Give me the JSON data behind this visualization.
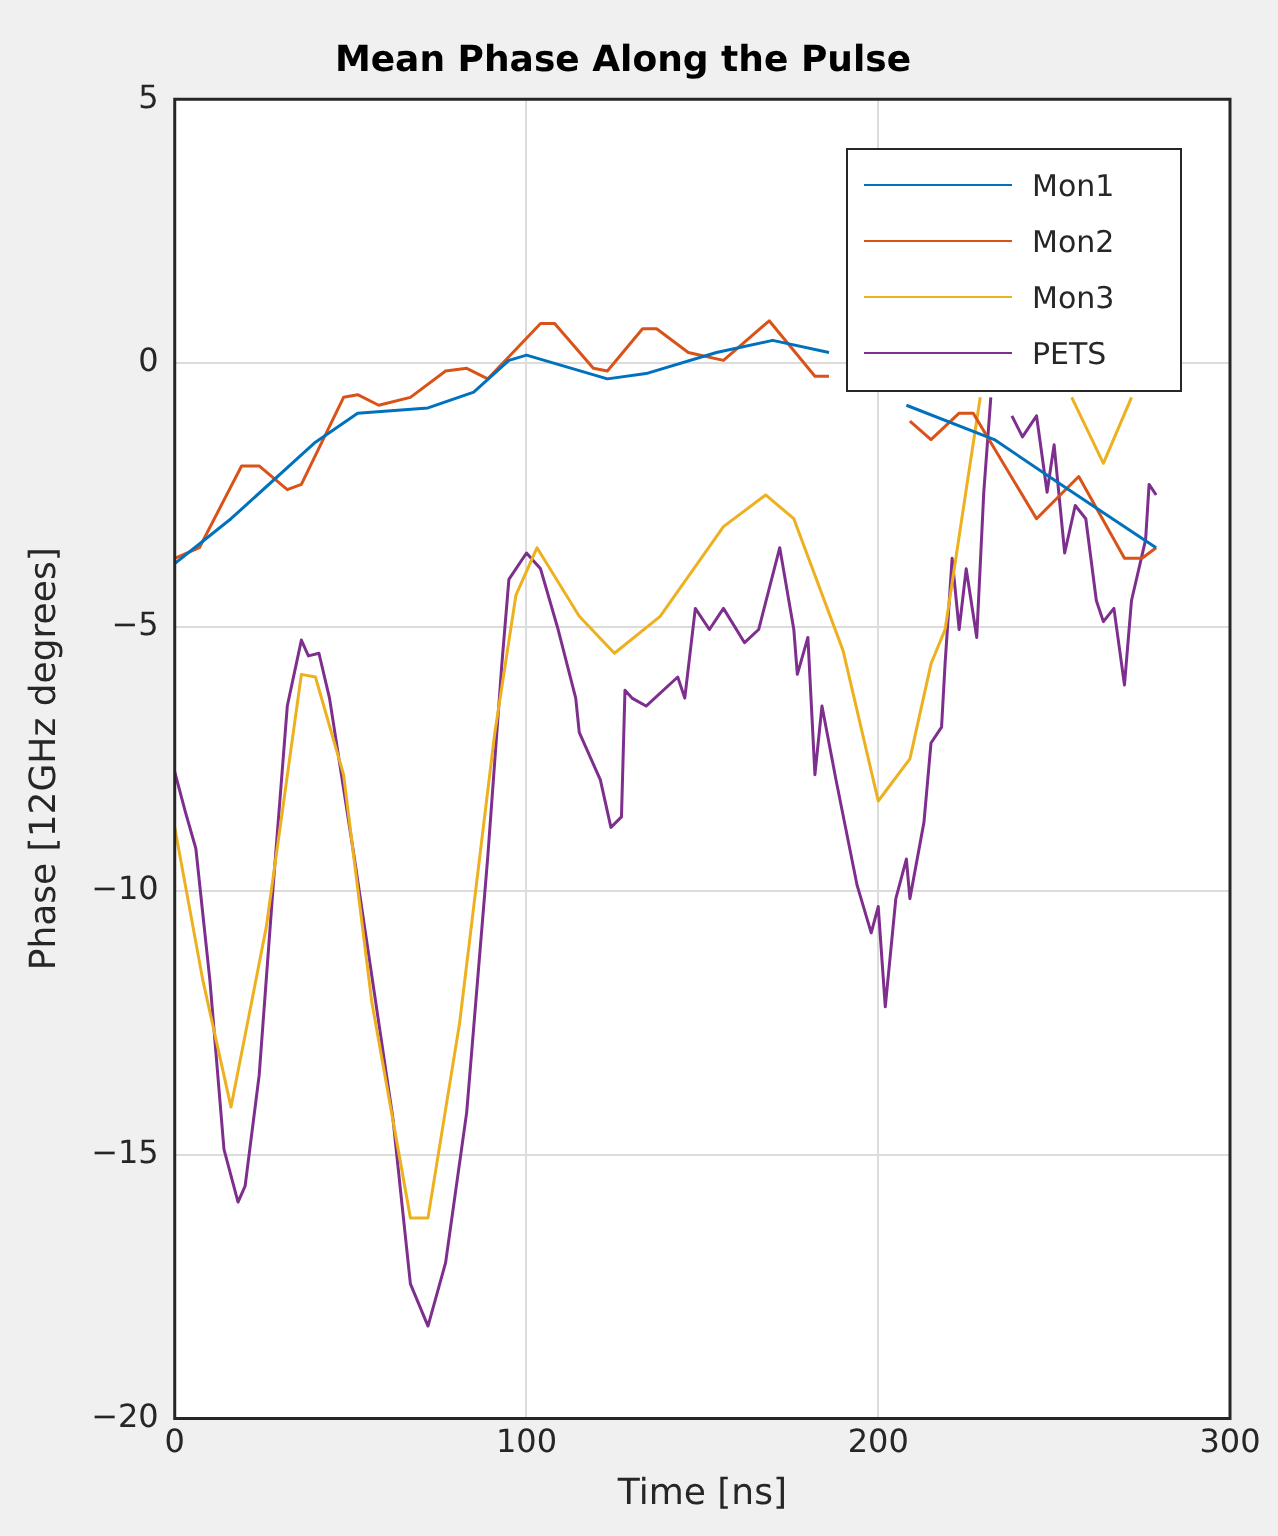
{
  "chart_data": {
    "type": "line",
    "title": "Mean Phase Along the Pulse",
    "xlabel": "Time [ns]",
    "ylabel": "Phase [12GHz degrees]",
    "xlim": [
      0,
      300
    ],
    "ylim": [
      -20,
      5
    ],
    "xticks": [
      0,
      100,
      200,
      300
    ],
    "yticks": [
      -20,
      -15,
      -10,
      -5,
      0,
      5
    ],
    "grid": true,
    "legend": "top right",
    "marker": "none",
    "line_style": "solid",
    "series": [
      {
        "name": "Mon1",
        "color": "#0072bd",
        "x": [
          0,
          16,
          40,
          52,
          72,
          85,
          95,
          100,
          123,
          134,
          154,
          170,
          186,
          197,
          208,
          233,
          253,
          279
        ],
        "values": [
          -3.8,
          -2.95,
          -1.5,
          -0.95,
          -0.85,
          -0.55,
          0.05,
          0.15,
          -0.3,
          -0.2,
          0.2,
          0.43,
          0.2,
          null,
          -0.8,
          -1.45,
          -2.35,
          -3.5
        ]
      },
      {
        "name": "Mon2",
        "color": "#d95319",
        "x": [
          0,
          7,
          19,
          24,
          32,
          36,
          48,
          52,
          58,
          67,
          77,
          83,
          89,
          104,
          108,
          119,
          123,
          133,
          137,
          146,
          156,
          169,
          182,
          186,
          197,
          209,
          215,
          223,
          227,
          245,
          257,
          270,
          275,
          279
        ],
        "values": [
          -3.7,
          -3.5,
          -1.95,
          -1.95,
          -2.4,
          -2.3,
          -0.65,
          -0.6,
          -0.8,
          -0.65,
          -0.15,
          -0.1,
          -0.3,
          0.75,
          0.75,
          -0.1,
          -0.15,
          0.65,
          0.65,
          0.2,
          0.05,
          0.8,
          -0.25,
          -0.25,
          null,
          -1.1,
          -1.45,
          -0.95,
          -0.95,
          -2.95,
          -2.15,
          -3.7,
          -3.7,
          -3.5
        ]
      },
      {
        "name": "Mon3",
        "color": "#edb120",
        "x": [
          0,
          8,
          16,
          26,
          36,
          40,
          48,
          56,
          67,
          72,
          81,
          91,
          97,
          103,
          115,
          125,
          138,
          156,
          168,
          176,
          190,
          200,
          209,
          215,
          219,
          225,
          229,
          240,
          255,
          264,
          272
        ],
        "values": [
          -8.8,
          -11.7,
          -14.1,
          -10.7,
          -5.9,
          -5.95,
          -7.8,
          -12.1,
          -16.2,
          -16.2,
          -12.5,
          -7,
          -4.4,
          -3.5,
          -4.8,
          -5.5,
          -4.8,
          -3.1,
          -2.5,
          -2.95,
          -5.45,
          -8.3,
          -7.5,
          -5.7,
          -5.05,
          -2.4,
          -0.65,
          null,
          -0.65,
          -1.9,
          -0.65
        ]
      },
      {
        "name": "PETS",
        "color": "#7e2f8e",
        "x": [
          0,
          3,
          6,
          10,
          14,
          18,
          20,
          24,
          28,
          32,
          36,
          38,
          41,
          44,
          51,
          62,
          67,
          72,
          77,
          83,
          89,
          93,
          95,
          100,
          104,
          109,
          114,
          115,
          121,
          124,
          127,
          128,
          130,
          134,
          143,
          145,
          148,
          152,
          156,
          162,
          166,
          172,
          176,
          177,
          180,
          182,
          184,
          188,
          194,
          198,
          200,
          202,
          205,
          208,
          209,
          213,
          215,
          218,
          219,
          221,
          223,
          225,
          228,
          230,
          232,
          235,
          238,
          241,
          245,
          248,
          250,
          253,
          256,
          259,
          262,
          264,
          267,
          270,
          272,
          276,
          277,
          279
        ],
        "values": [
          -7.75,
          -8.5,
          -9.2,
          -11.7,
          -14.9,
          -15.9,
          -15.6,
          -13.5,
          -9.9,
          -6.5,
          -5.25,
          -5.55,
          -5.5,
          -6.35,
          -9.35,
          -14.3,
          -17.45,
          -18.25,
          -17.05,
          -14.2,
          -9.35,
          -5.7,
          -4.1,
          -3.6,
          -3.9,
          -5.05,
          -6.35,
          -7,
          -7.9,
          -8.8,
          -8.6,
          -6.2,
          -6.35,
          -6.5,
          -5.95,
          -6.35,
          -4.65,
          -5.05,
          -4.65,
          -5.3,
          -5.05,
          -3.5,
          -5.05,
          -5.9,
          -5.2,
          -7.8,
          -6.5,
          -7.9,
          -9.9,
          -10.8,
          -10.3,
          -12.2,
          -10.15,
          -9.4,
          -10.15,
          -8.7,
          -7.2,
          -6.9,
          -5.7,
          -3.7,
          -5.05,
          -3.9,
          -5.2,
          -2.45,
          -0.65,
          null,
          -1,
          -1.4,
          -1,
          -2.45,
          -1.55,
          -3.6,
          -2.7,
          -2.95,
          -4.5,
          -4.9,
          -4.65,
          -6.1,
          -4.5,
          -3.35,
          -2.3,
          -2.5
        ]
      }
    ]
  }
}
